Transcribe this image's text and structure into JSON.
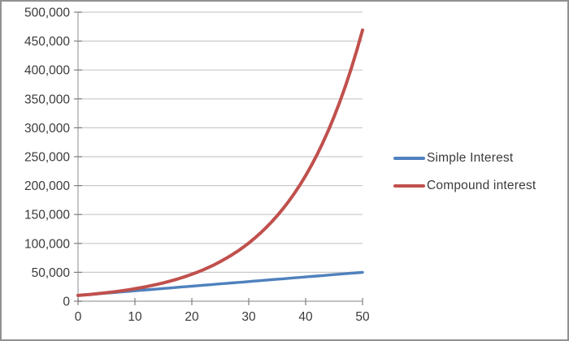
{
  "window": {
    "background": "#ffffff",
    "border_color": "#919191"
  },
  "chart_data": {
    "type": "line",
    "title": "",
    "xlabel": "",
    "ylabel": "",
    "xlim": [
      0,
      50
    ],
    "ylim": [
      0,
      500000
    ],
    "grid": "horizontal-major",
    "legend_position": "right",
    "x": [
      0,
      1,
      2,
      3,
      4,
      5,
      6,
      7,
      8,
      9,
      10,
      11,
      12,
      13,
      14,
      15,
      16,
      17,
      18,
      19,
      20,
      21,
      22,
      23,
      24,
      25,
      26,
      27,
      28,
      29,
      30,
      31,
      32,
      33,
      34,
      35,
      36,
      37,
      38,
      39,
      40,
      41,
      42,
      43,
      44,
      45,
      46,
      47,
      48,
      49,
      50
    ],
    "series": [
      {
        "name": "Simple Interest",
        "color": "#4F81BD",
        "values": [
          10000,
          10800,
          11600,
          12400,
          13200,
          14000,
          14800,
          15600,
          16400,
          17200,
          18000,
          18800,
          19600,
          20400,
          21200,
          22000,
          22800,
          23600,
          24400,
          25200,
          26000,
          26800,
          27600,
          28400,
          29200,
          30000,
          30800,
          31600,
          32400,
          33200,
          34000,
          34800,
          35600,
          36400,
          37200,
          38000,
          38800,
          39600,
          40400,
          41200,
          42000,
          42800,
          43600,
          44400,
          45200,
          46000,
          46800,
          47600,
          48400,
          49200,
          50000
        ]
      },
      {
        "name": "Compound interest",
        "color": "#C0504D",
        "values": [
          10000,
          10800,
          11664,
          12597,
          13605,
          14693,
          15869,
          17138,
          18509,
          19990,
          21589,
          23316,
          25182,
          27196,
          29372,
          31722,
          34259,
          37000,
          39960,
          43157,
          46610,
          50338,
          54365,
          58715,
          63412,
          68485,
          73964,
          79881,
          86271,
          93173,
          100627,
          108677,
          117371,
          126761,
          136902,
          147853,
          159682,
          172456,
          186252,
          201152,
          217245,
          234625,
          253395,
          273666,
          295559,
          319204,
          344740,
          372320,
          402105,
          434274,
          469016
        ]
      }
    ],
    "x_ticks": [
      0,
      10,
      20,
      30,
      40,
      50
    ],
    "x_tick_labels": [
      "0",
      "10",
      "20",
      "30",
      "40",
      "50"
    ],
    "y_ticks": [
      0,
      50000,
      100000,
      150000,
      200000,
      250000,
      300000,
      350000,
      400000,
      450000,
      500000
    ],
    "y_tick_labels": [
      "0",
      "50,000",
      "100,000",
      "150,000",
      "200,000",
      "250,000",
      "300,000",
      "350,000",
      "400,000",
      "450,000",
      "500,000"
    ],
    "colors": {
      "gridline": "#C9C9C9",
      "axis": "#ADADAD",
      "tick": "#7F7F7F",
      "label": "#3B3B3B"
    }
  }
}
